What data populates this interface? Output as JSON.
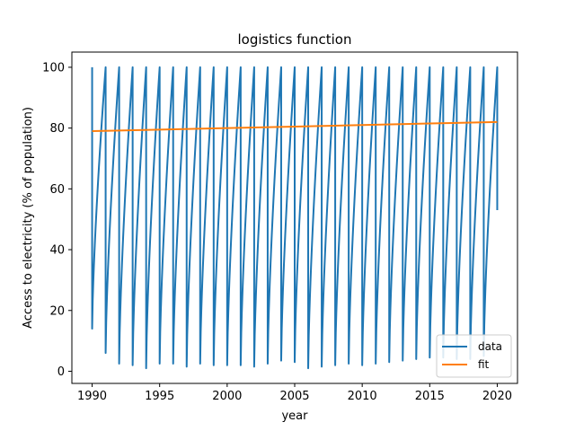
{
  "chart_data": {
    "type": "line",
    "title": "logistics function",
    "xlabel": "year",
    "ylabel": "Access to electricity (% of population)",
    "xlim": [
      1988.5,
      2021.5
    ],
    "ylim": [
      -4,
      105
    ],
    "xticks": [
      1990,
      1995,
      2000,
      2005,
      2010,
      2015,
      2020
    ],
    "yticks": [
      0,
      20,
      40,
      60,
      80,
      100
    ],
    "grid": false,
    "legend": "lower-right",
    "series": [
      {
        "name": "data",
        "color": "#1f77b4",
        "cycles": [
          {
            "start_year": 1990,
            "low": 14,
            "end_year": 1991
          },
          {
            "start_year": 1991,
            "low": 6,
            "end_year": 1992
          },
          {
            "start_year": 1992,
            "low": 2.5,
            "end_year": 1993
          },
          {
            "start_year": 1993,
            "low": 2,
            "end_year": 1994
          },
          {
            "start_year": 1994,
            "low": 1,
            "end_year": 1995
          },
          {
            "start_year": 1995,
            "low": 2.5,
            "end_year": 1996
          },
          {
            "start_year": 1996,
            "low": 2.5,
            "end_year": 1997
          },
          {
            "start_year": 1997,
            "low": 1.5,
            "end_year": 1998
          },
          {
            "start_year": 1998,
            "low": 2.5,
            "end_year": 1999
          },
          {
            "start_year": 1999,
            "low": 2,
            "end_year": 2000
          },
          {
            "start_year": 2000,
            "low": 2,
            "end_year": 2001
          },
          {
            "start_year": 2001,
            "low": 2,
            "end_year": 2002
          },
          {
            "start_year": 2002,
            "low": 1.5,
            "end_year": 2003
          },
          {
            "start_year": 2003,
            "low": 2.5,
            "end_year": 2004
          },
          {
            "start_year": 2004,
            "low": 3.5,
            "end_year": 2005
          },
          {
            "start_year": 2005,
            "low": 3,
            "end_year": 2006
          },
          {
            "start_year": 2006,
            "low": 1,
            "end_year": 2007
          },
          {
            "start_year": 2007,
            "low": 1.5,
            "end_year": 2008
          },
          {
            "start_year": 2008,
            "low": 2,
            "end_year": 2009
          },
          {
            "start_year": 2009,
            "low": 2.5,
            "end_year": 2010
          },
          {
            "start_year": 2010,
            "low": 2,
            "end_year": 2011
          },
          {
            "start_year": 2011,
            "low": 2.5,
            "end_year": 2012
          },
          {
            "start_year": 2012,
            "low": 3,
            "end_year": 2013
          },
          {
            "start_year": 2013,
            "low": 3.5,
            "end_year": 2014
          },
          {
            "start_year": 2014,
            "low": 4,
            "end_year": 2015
          },
          {
            "start_year": 2015,
            "low": 4.5,
            "end_year": 2016
          },
          {
            "start_year": 2016,
            "low": 4.5,
            "end_year": 2017
          },
          {
            "start_year": 2017,
            "low": 4,
            "end_year": 2018
          },
          {
            "start_year": 2018,
            "low": 4,
            "end_year": 2019
          },
          {
            "start_year": 2019,
            "low": 5,
            "end_year": 2020
          }
        ],
        "tail": {
          "x": 2020,
          "y": [
            100,
            53
          ]
        }
      },
      {
        "name": "fit",
        "color": "#ff7f0e",
        "x": [
          1990,
          1995,
          2000,
          2005,
          2010,
          2015,
          2020
        ],
        "y": [
          79,
          79.5,
          80,
          80.5,
          81,
          81.5,
          82
        ]
      }
    ]
  }
}
